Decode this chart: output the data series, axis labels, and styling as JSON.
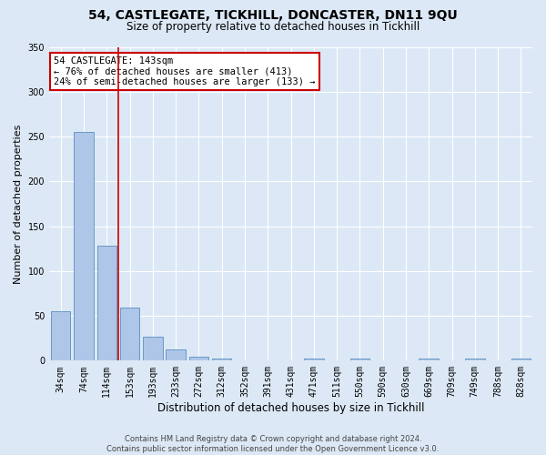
{
  "title1": "54, CASTLEGATE, TICKHILL, DONCASTER, DN11 9QU",
  "title2": "Size of property relative to detached houses in Tickhill",
  "xlabel": "Distribution of detached houses by size in Tickhill",
  "ylabel": "Number of detached properties",
  "bar_labels": [
    "34sqm",
    "74sqm",
    "114sqm",
    "153sqm",
    "193sqm",
    "233sqm",
    "272sqm",
    "312sqm",
    "352sqm",
    "391sqm",
    "431sqm",
    "471sqm",
    "511sqm",
    "550sqm",
    "590sqm",
    "630sqm",
    "669sqm",
    "709sqm",
    "749sqm",
    "788sqm",
    "828sqm"
  ],
  "bar_values": [
    55,
    255,
    128,
    59,
    27,
    13,
    4,
    2,
    0,
    0,
    0,
    2,
    0,
    2,
    0,
    0,
    2,
    0,
    2,
    0,
    2
  ],
  "bar_color": "#aec6e8",
  "bar_edge_color": "#5a8fc0",
  "property_line_color": "#cc0000",
  "ylim": [
    0,
    350
  ],
  "yticks": [
    0,
    50,
    100,
    150,
    200,
    250,
    300,
    350
  ],
  "annotation_title": "54 CASTLEGATE: 143sqm",
  "annotation_line1": "← 76% of detached houses are smaller (413)",
  "annotation_line2": "24% of semi-detached houses are larger (133) →",
  "annotation_box_color": "#cc0000",
  "footnote1": "Contains HM Land Registry data © Crown copyright and database right 2024.",
  "footnote2": "Contains public sector information licensed under the Open Government Licence v3.0.",
  "background_color": "#dce8f5",
  "plot_bg_color": "#dce8f5",
  "grid_color": "#ffffff",
  "title1_fontsize": 10,
  "title2_fontsize": 8.5,
  "xlabel_fontsize": 8.5,
  "ylabel_fontsize": 8,
  "tick_fontsize": 7,
  "annotation_fontsize": 7.5,
  "footnote_fontsize": 6
}
